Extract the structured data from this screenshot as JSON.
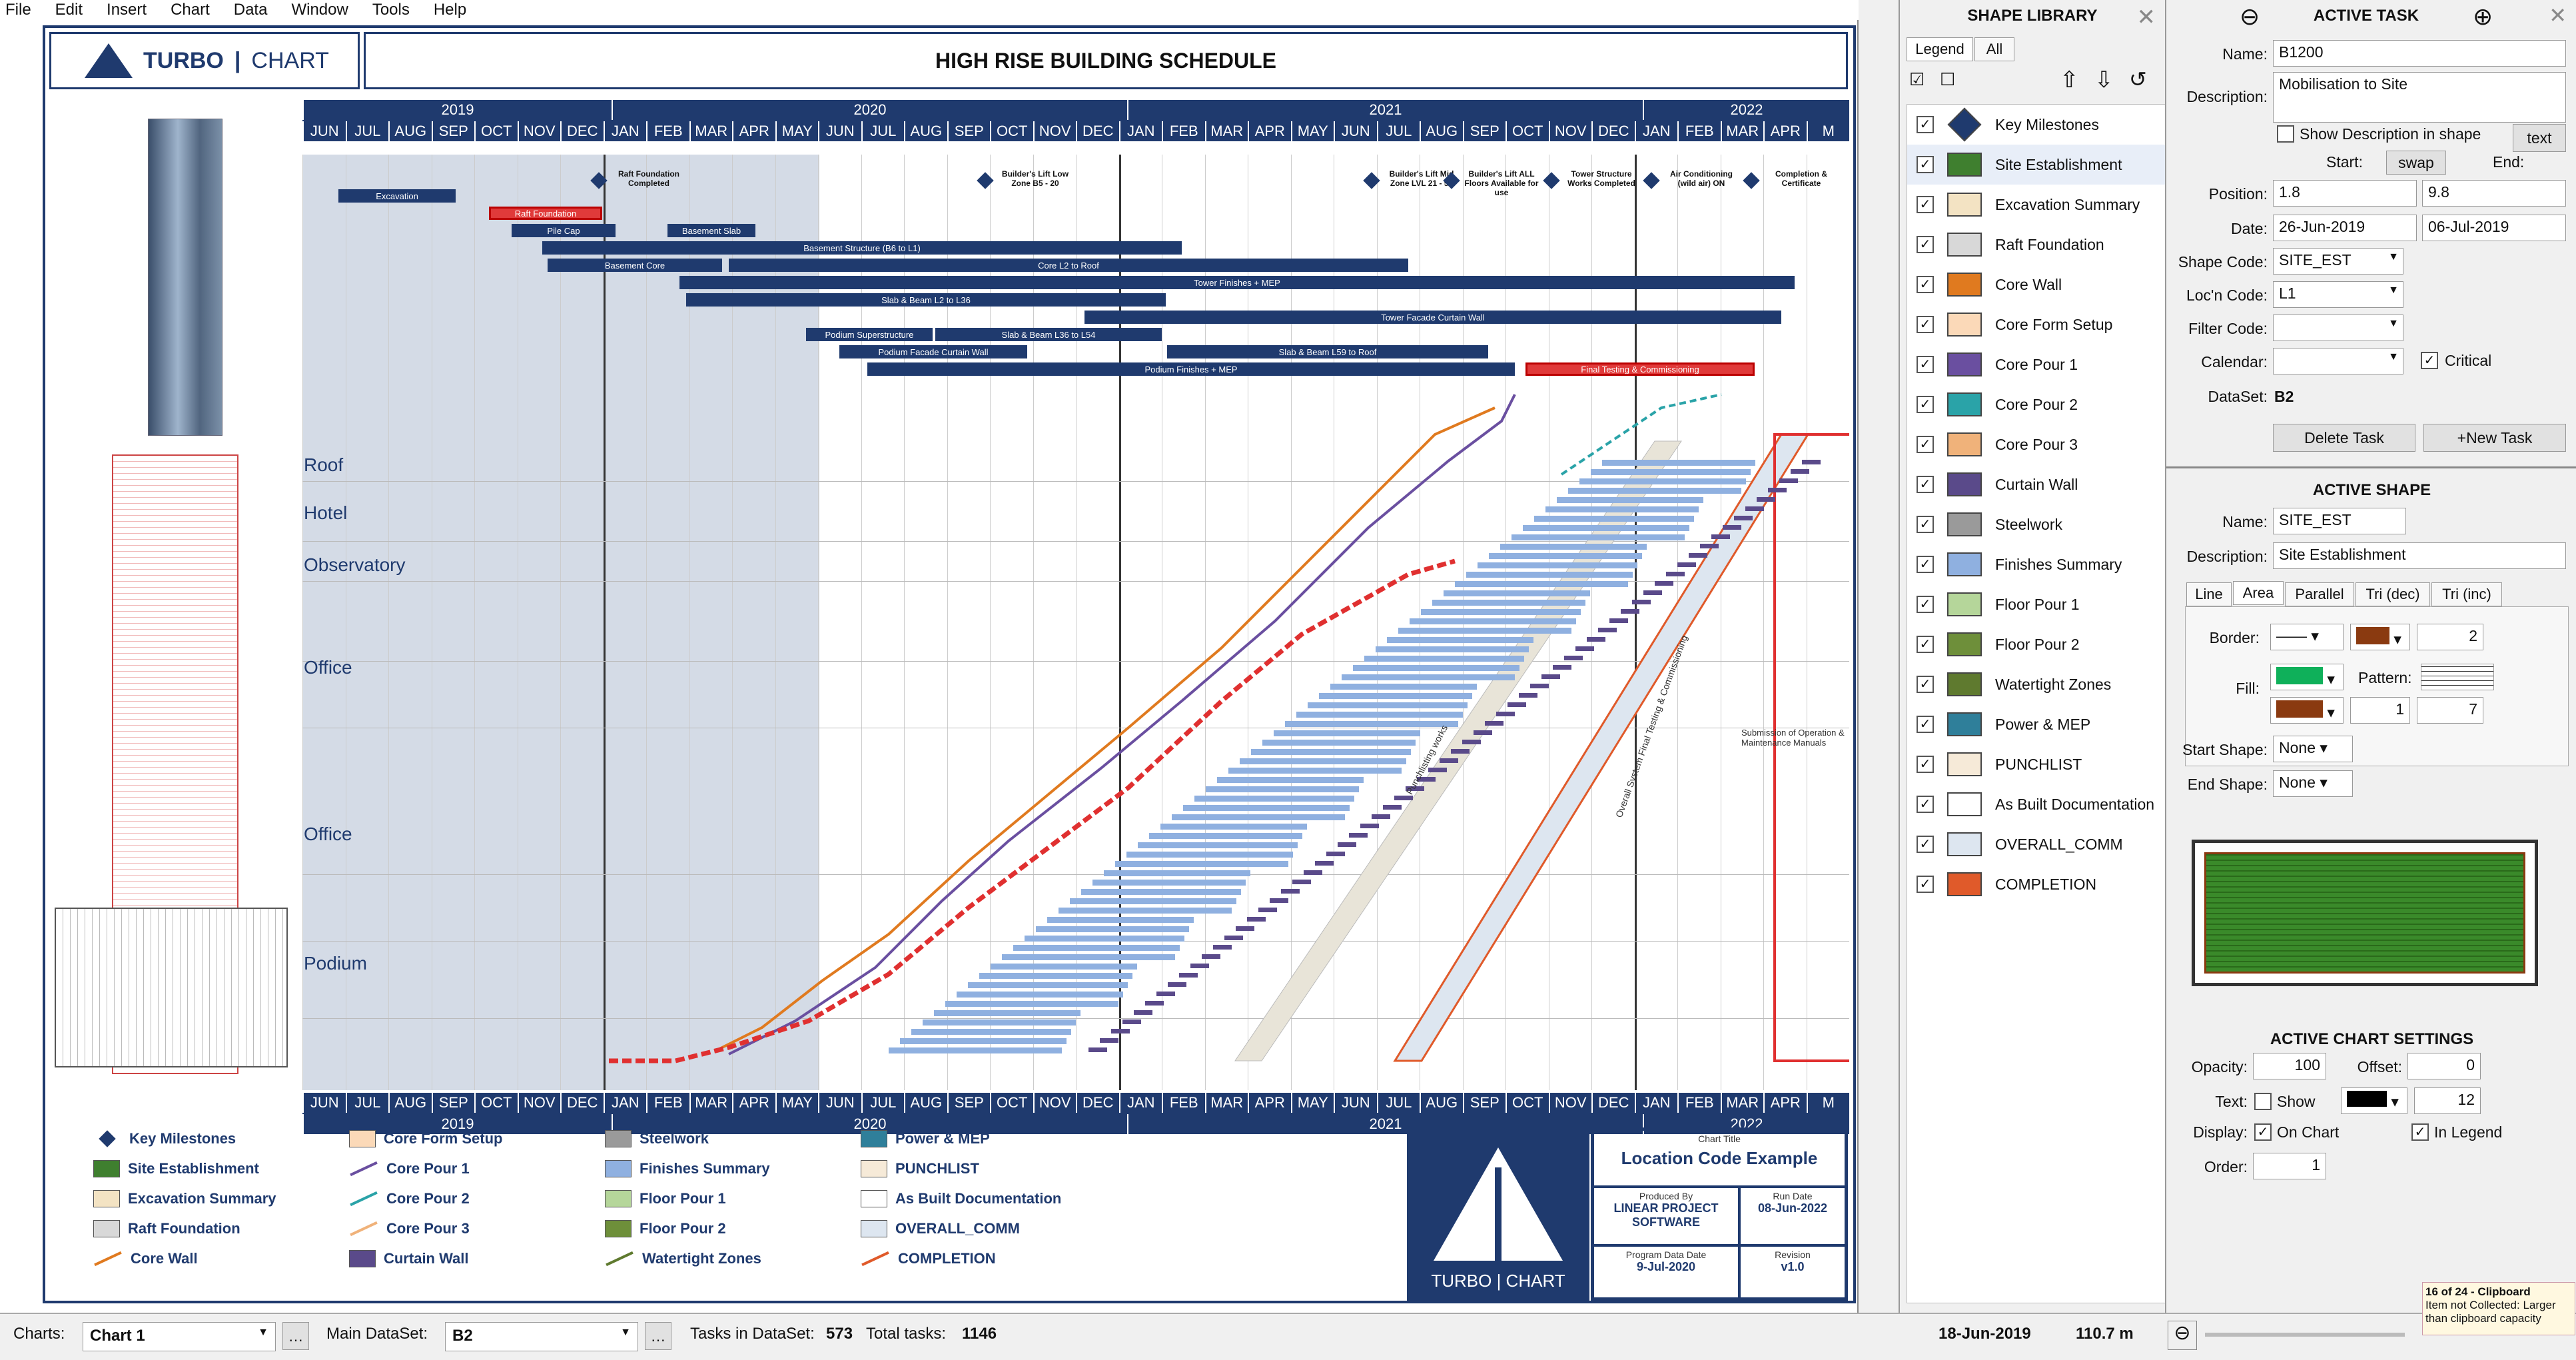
{
  "menu": [
    "File",
    "Edit",
    "Insert",
    "Chart",
    "Data",
    "Window",
    "Tools",
    "Help"
  ],
  "logo": {
    "turbo": "TURBO",
    "chart": "CHART"
  },
  "schedule_title": "HIGH RISE BUILDING SCHEDULE",
  "years_top": [
    "2019",
    "2020",
    "2021",
    "2022"
  ],
  "months_top": [
    "JUN",
    "JUL",
    "AUG",
    "SEP",
    "OCT",
    "NOV",
    "DEC",
    "JAN",
    "FEB",
    "MAR",
    "APR",
    "MAY",
    "JUN",
    "JUL",
    "AUG",
    "SEP",
    "OCT",
    "NOV",
    "DEC",
    "JAN",
    "FEB",
    "MAR",
    "APR",
    "MAY",
    "JUN",
    "JUL",
    "AUG",
    "SEP",
    "OCT",
    "NOV",
    "DEC",
    "JAN",
    "FEB",
    "MAR",
    "APR",
    "M"
  ],
  "levels": [
    "Roof",
    "Hotel",
    "Observatory",
    "Office",
    "Office",
    "Podium"
  ],
  "milestones": [
    "Raft Foundation Completed",
    "Builder's Lift Low Zone B5 - 20",
    "Builder's Lift Mid Zone LVL 21 - 54",
    "Builder's Lift ALL Floors Available for use",
    "Tower Structure Works Completed",
    "Air Conditioning (wild air) ON",
    "Completion & Certificate"
  ],
  "tasks": [
    "Excavation",
    "Raft Foundation",
    "Pile Cap",
    "Basement Slab",
    "Basement Structure (B6 to L1)",
    "Basement Core",
    "Core L2 to Roof",
    "Tower Finishes + MEP",
    "Slab & Beam L2 to L36",
    "Tower Facade Curtain Wall",
    "Podium Superstructure",
    "Slab & Beam L36 to L54",
    "Podium Facade Curtain Wall",
    "Slab & Beam L59 to Roof",
    "Podium Finishes + MEP",
    "Final Testing & Commissioning"
  ],
  "diag_labels": [
    "Punchlisting works",
    "Overall System Final Testing & Commissioning",
    "Submission of Operation & Maintenance Manuals"
  ],
  "legend": [
    {
      "label": "Key Milestones",
      "color": "#1f3a6e",
      "kind": "diamond"
    },
    {
      "label": "Site Establishment",
      "color": "#3f7f2f",
      "kind": "box"
    },
    {
      "label": "Excavation Summary",
      "color": "#f3e3c3",
      "kind": "box"
    },
    {
      "label": "Raft Foundation",
      "color": "#d8d8d8",
      "kind": "box"
    },
    {
      "label": "Core Wall",
      "color": "#e07a1f",
      "kind": "line"
    },
    {
      "label": "Core Form Setup",
      "color": "#fbd9b8",
      "kind": "box"
    },
    {
      "label": "Core Pour 1",
      "color": "#6a4fa0",
      "kind": "line"
    },
    {
      "label": "Core Pour 2",
      "color": "#2aa3a8",
      "kind": "line"
    },
    {
      "label": "Core Pour 3",
      "color": "#f0b27a",
      "kind": "line"
    },
    {
      "label": "Curtain Wall",
      "color": "#5a4a8a",
      "kind": "box"
    },
    {
      "label": "Steelwork",
      "color": "#9a9a9a",
      "kind": "box"
    },
    {
      "label": "Finishes Summary",
      "color": "#8fb0e0",
      "kind": "box"
    },
    {
      "label": "Floor Pour 1",
      "color": "#b5d69a",
      "kind": "box"
    },
    {
      "label": "Floor Pour 2",
      "color": "#6e8f3a",
      "kind": "box"
    },
    {
      "label": "Watertight Zones",
      "color": "#5f7a2f",
      "kind": "line"
    },
    {
      "label": "Power & MEP",
      "color": "#2f7f9a",
      "kind": "box"
    },
    {
      "label": "PUNCHLIST",
      "color": "#f6ead8",
      "kind": "box"
    },
    {
      "label": "As Built Documentation",
      "color": "#ffffff",
      "kind": "box"
    },
    {
      "label": "OVERALL_COMM",
      "color": "#dde6f0",
      "kind": "box"
    },
    {
      "label": "COMPLETION",
      "color": "#e05a2a",
      "kind": "line"
    }
  ],
  "titleblock": {
    "chart_title_label": "Chart Title",
    "chart_title": "Location Code Example",
    "produced_by_label": "Produced By",
    "produced_by": "LINEAR PROJECT SOFTWARE",
    "run_date_label": "Run Date",
    "run_date": "08-Jun-2022",
    "program_date_label": "Program Data Date",
    "program_date": "9-Jul-2020",
    "revision_label": "Revision",
    "revision": "v1.0"
  },
  "library": {
    "title": "SHAPE LIBRARY",
    "tab_legend": "Legend",
    "tab_all": "All",
    "items": [
      {
        "label": "Key Milestones",
        "color": "#1f3a6e"
      },
      {
        "label": "Site Establishment",
        "color": "#3f7f2f"
      },
      {
        "label": "Excavation Summary",
        "color": "#f3e3c3"
      },
      {
        "label": "Raft Foundation",
        "color": "#d8d8d8"
      },
      {
        "label": "Core Wall",
        "color": "#e07a1f"
      },
      {
        "label": "Core Form Setup",
        "color": "#fbd9b8"
      },
      {
        "label": "Core Pour 1",
        "color": "#6a4fa0"
      },
      {
        "label": "Core Pour 2",
        "color": "#2aa3a8"
      },
      {
        "label": "Core Pour 3",
        "color": "#f0b27a"
      },
      {
        "label": "Curtain Wall",
        "color": "#5a4a8a"
      },
      {
        "label": "Steelwork",
        "color": "#9a9a9a"
      },
      {
        "label": "Finishes Summary",
        "color": "#8fb0e0"
      },
      {
        "label": "Floor Pour 1",
        "color": "#b5d69a"
      },
      {
        "label": "Floor Pour 2",
        "color": "#6e8f3a"
      },
      {
        "label": "Watertight Zones",
        "color": "#5f7a2f"
      },
      {
        "label": "Power & MEP",
        "color": "#2f7f9a"
      },
      {
        "label": "PUNCHLIST",
        "color": "#f6ead8"
      },
      {
        "label": "As Built Documentation",
        "color": "#ffffff"
      },
      {
        "label": "OVERALL_COMM",
        "color": "#dde6f0"
      },
      {
        "label": "COMPLETION",
        "color": "#e05a2a"
      }
    ]
  },
  "active_task": {
    "title": "ACTIVE TASK",
    "name_label": "Name:",
    "name": "B1200",
    "desc_label": "Description:",
    "description": "Mobilisation to Site",
    "show_desc": "Show Description in shape",
    "text_btn": "text",
    "start_label": "Start:",
    "swap_btn": "swap",
    "end_label": "End:",
    "position_label": "Position:",
    "pos_start": "1.8",
    "pos_end": "9.8",
    "date_label": "Date:",
    "date_start": "26-Jun-2019",
    "date_end": "06-Jul-2019",
    "shape_code_label": "Shape Code:",
    "shape_code": "SITE_EST",
    "loc_code_label": "Loc'n Code:",
    "loc_code": "L1",
    "filter_label": "Filter Code:",
    "filter_code": "",
    "calendar_label": "Calendar:",
    "calendar": "",
    "critical": "Critical",
    "dataset_label": "DataSet:",
    "dataset": "B2",
    "delete_btn": "Delete Task",
    "new_btn": "+New Task"
  },
  "active_shape": {
    "title": "ACTIVE SHAPE",
    "name_label": "Name:",
    "name": "SITE_EST",
    "desc_label": "Description:",
    "description": "Site Establishment",
    "tabs": [
      "Line",
      "Area",
      "Parallel",
      "Tri (dec)",
      "Tri (inc)"
    ],
    "border_label": "Border:",
    "border_width": "2",
    "fill_label": "Fill:",
    "pattern_label": "Pattern:",
    "fill_a": "1",
    "fill_b": "7",
    "start_shape_label": "Start Shape:",
    "start_shape": "None",
    "end_shape_label": "End Shape:",
    "end_shape": "None",
    "fill_color": "#3a8a2a"
  },
  "chart_settings": {
    "title": "ACTIVE CHART SETTINGS",
    "opacity_label": "Opacity:",
    "opacity": "100",
    "offset_label": "Offset:",
    "offset": "0",
    "text_label": "Text:",
    "show": "Show",
    "text_size": "12",
    "display_label": "Display:",
    "on_chart": "On Chart",
    "in_legend": "In Legend",
    "order_label": "Order:",
    "order": "1"
  },
  "status": {
    "charts_label": "Charts:",
    "chart": "Chart 1",
    "dataset_label": "Main DataSet:",
    "dataset": "B2",
    "tasks_label": "Tasks in DataSet:",
    "tasks": "573",
    "total_label": "Total tasks:",
    "total": "1146",
    "date": "18-Jun-2019",
    "height": "110.7 m",
    "clip_title": "16 of 24 - Clipboard",
    "clip_msg": "Item not Collected: Larger than clipboard capacity"
  }
}
